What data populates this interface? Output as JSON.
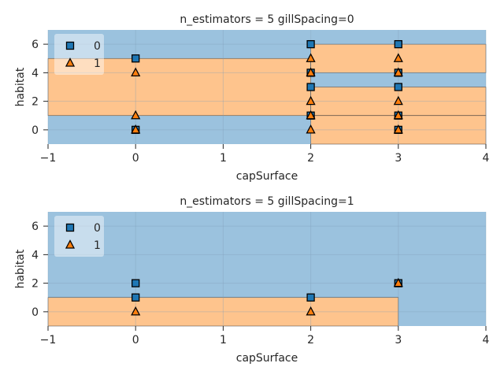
{
  "colors": {
    "class0_region": "#9bc2de",
    "class1_region": "#fec48d",
    "class0_marker": "#1f77b4",
    "class1_marker": "#ff7f0e",
    "boundary": "#333333",
    "grid": "#7f9fb8",
    "text": "#262626"
  },
  "chart_data": [
    {
      "type": "scatter",
      "title": "n_estimators = 5 gillSpacing=0",
      "xlabel": "capSurface",
      "ylabel": "habitat",
      "xlim": [
        -1,
        4
      ],
      "ylim": [
        -1,
        7
      ],
      "xticks": [
        "−1",
        "0",
        "1",
        "2",
        "3",
        "4"
      ],
      "yticks": [
        "0",
        "2",
        "4",
        "6"
      ],
      "grid": true,
      "legend": {
        "position": "top-left",
        "entries": [
          "0",
          "1"
        ]
      },
      "decision_regions": [
        {
          "class": "0",
          "x": [
            -1,
            4
          ],
          "y": [
            -1,
            1
          ]
        },
        {
          "class": "1",
          "x": [
            -1,
            2
          ],
          "y": [
            1,
            5
          ]
        },
        {
          "class": "0",
          "x": [
            -1,
            2
          ],
          "y": [
            5,
            7
          ]
        },
        {
          "class": "1",
          "x": [
            2,
            4
          ],
          "y": [
            -1,
            1
          ]
        },
        {
          "class": "1",
          "x": [
            2,
            4
          ],
          "y": [
            1,
            3
          ]
        },
        {
          "class": "0",
          "x": [
            2,
            4
          ],
          "y": [
            3,
            4
          ]
        },
        {
          "class": "1",
          "x": [
            2,
            4
          ],
          "y": [
            4,
            6
          ]
        },
        {
          "class": "0",
          "x": [
            2,
            4
          ],
          "y": [
            6,
            7
          ]
        }
      ],
      "series": [
        {
          "name": "0",
          "marker": "square",
          "points": [
            [
              0,
              5
            ],
            [
              0,
              0
            ],
            [
              2,
              6
            ],
            [
              2,
              4
            ],
            [
              2,
              3
            ],
            [
              2,
              1
            ],
            [
              3,
              6
            ],
            [
              3,
              4
            ],
            [
              3,
              3
            ],
            [
              3,
              1
            ],
            [
              3,
              0
            ]
          ]
        },
        {
          "name": "1",
          "marker": "triangle",
          "points": [
            [
              0,
              4
            ],
            [
              0,
              1
            ],
            [
              0,
              0
            ],
            [
              2,
              5
            ],
            [
              2,
              4
            ],
            [
              2,
              2
            ],
            [
              2,
              1
            ],
            [
              2,
              0
            ],
            [
              3,
              5
            ],
            [
              3,
              4
            ],
            [
              3,
              2
            ],
            [
              3,
              1
            ],
            [
              3,
              0
            ]
          ]
        }
      ]
    },
    {
      "type": "scatter",
      "title": "n_estimators = 5 gillSpacing=1",
      "xlabel": "capSurface",
      "ylabel": "habitat",
      "xlim": [
        -1,
        4
      ],
      "ylim": [
        -1,
        7
      ],
      "xticks": [
        "−1",
        "0",
        "1",
        "2",
        "3",
        "4"
      ],
      "yticks": [
        "0",
        "2",
        "4",
        "6"
      ],
      "grid": true,
      "legend": {
        "position": "top-left",
        "entries": [
          "0",
          "1"
        ]
      },
      "decision_regions": [
        {
          "class": "0",
          "x": [
            -1,
            4
          ],
          "y": [
            -1,
            7
          ]
        },
        {
          "class": "1",
          "x": [
            -1,
            3
          ],
          "y": [
            -1,
            1
          ]
        }
      ],
      "series": [
        {
          "name": "0",
          "marker": "square",
          "points": [
            [
              0,
              2
            ],
            [
              0,
              1
            ],
            [
              2,
              1
            ],
            [
              3,
              2
            ]
          ]
        },
        {
          "name": "1",
          "marker": "triangle",
          "points": [
            [
              0,
              0
            ],
            [
              2,
              0
            ],
            [
              3,
              2
            ]
          ]
        }
      ]
    }
  ]
}
